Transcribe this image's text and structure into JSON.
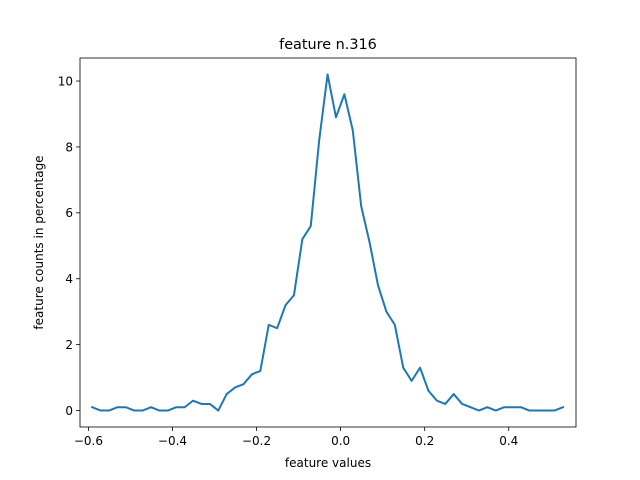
{
  "chart_data": {
    "type": "line",
    "title": "feature n.316",
    "xlabel": "feature values",
    "ylabel": "feature counts in percentage",
    "xlim": [
      -0.62,
      0.56
    ],
    "ylim": [
      -0.5,
      10.7
    ],
    "xticks": [
      -0.6,
      -0.4,
      -0.2,
      0.0,
      0.2,
      0.4
    ],
    "xtick_labels": [
      "−0.6",
      "−0.4",
      "−0.2",
      "0.0",
      "0.2",
      "0.4"
    ],
    "yticks": [
      0,
      2,
      4,
      6,
      8,
      10
    ],
    "ytick_labels": [
      "0",
      "2",
      "4",
      "6",
      "8",
      "10"
    ],
    "grid": false,
    "legend": false,
    "colors": {
      "series": "#1f77b4"
    },
    "series": [
      {
        "x": [
          -0.591,
          -0.571,
          -0.551,
          -0.531,
          -0.511,
          -0.491,
          -0.471,
          -0.451,
          -0.431,
          -0.411,
          -0.391,
          -0.371,
          -0.351,
          -0.331,
          -0.311,
          -0.291,
          -0.271,
          -0.251,
          -0.231,
          -0.211,
          -0.191,
          -0.171,
          -0.151,
          -0.131,
          -0.111,
          -0.091,
          -0.071,
          -0.051,
          -0.031,
          -0.011,
          0.009,
          0.029,
          0.049,
          0.069,
          0.089,
          0.109,
          0.129,
          0.149,
          0.169,
          0.189,
          0.209,
          0.229,
          0.249,
          0.269,
          0.289,
          0.309,
          0.329,
          0.349,
          0.369,
          0.389,
          0.409,
          0.429,
          0.449,
          0.469,
          0.489,
          0.509,
          0.529
        ],
        "values": [
          0.1,
          0.0,
          0.0,
          0.1,
          0.1,
          0.0,
          0.0,
          0.1,
          0.0,
          0.0,
          0.1,
          0.1,
          0.3,
          0.2,
          0.2,
          0.0,
          0.5,
          0.7,
          0.8,
          1.1,
          1.2,
          2.6,
          2.5,
          3.2,
          3.5,
          5.2,
          5.6,
          8.2,
          10.2,
          8.9,
          9.6,
          8.5,
          6.2,
          5.1,
          3.8,
          3.0,
          2.6,
          1.3,
          0.9,
          1.3,
          0.6,
          0.3,
          0.2,
          0.5,
          0.2,
          0.1,
          0.0,
          0.1,
          0.0,
          0.1,
          0.1,
          0.1,
          0.0,
          0.0,
          0.0,
          0.0,
          0.1
        ]
      }
    ]
  }
}
